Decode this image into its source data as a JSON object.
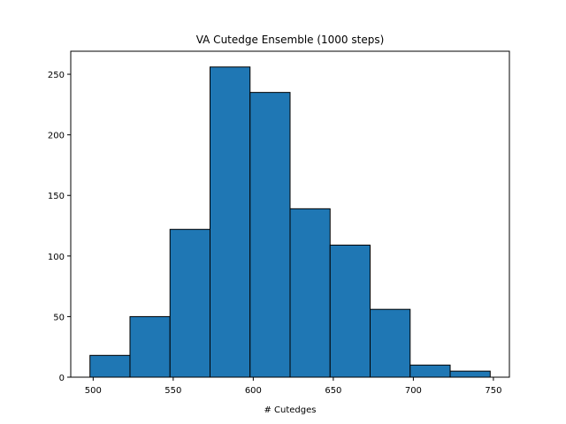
{
  "chart_data": {
    "type": "bar",
    "title": "VA Cutedge Ensemble (1000 steps)",
    "xlabel": "# Cutedges",
    "ylabel": "",
    "bin_edges": [
      498,
      523,
      548,
      573,
      598,
      623,
      648,
      673,
      698,
      723,
      748
    ],
    "values": [
      18,
      50,
      122,
      256,
      235,
      139,
      109,
      56,
      10,
      5
    ],
    "xlim": [
      486,
      760
    ],
    "ylim": [
      0,
      269
    ],
    "xticks": [
      500,
      550,
      600,
      650,
      700,
      750
    ],
    "yticks": [
      0,
      50,
      100,
      150,
      200,
      250
    ],
    "bar_color": "#1f77b4",
    "edge_color": "#000000",
    "grid": false,
    "legend": "none"
  }
}
